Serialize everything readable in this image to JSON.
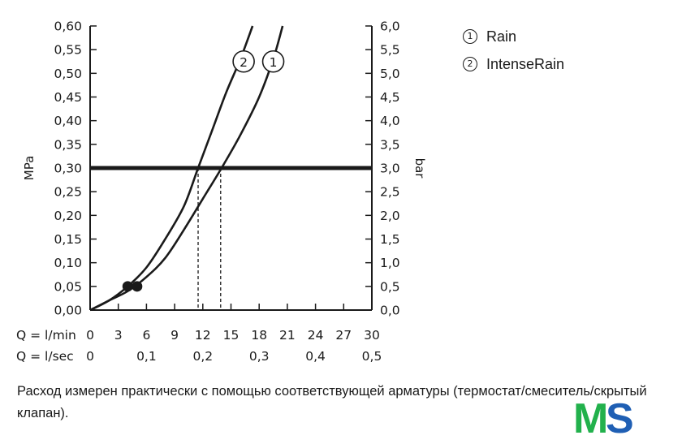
{
  "chart_data": {
    "type": "line",
    "ylabel_left": "MPa",
    "ylabel_right": "bar",
    "ylim": [
      0,
      0.6
    ],
    "xlim": [
      0,
      30
    ],
    "yticks_left": [
      "0,00",
      "0,05",
      "0,10",
      "0,15",
      "0,20",
      "0,25",
      "0,30",
      "0,35",
      "0,40",
      "0,45",
      "0,50",
      "0,55",
      "0,60"
    ],
    "yticks_right": [
      "0,0",
      "0,5",
      "1,0",
      "1,5",
      "2,0",
      "2,5",
      "3,0",
      "3,5",
      "4,0",
      "4,5",
      "5,0",
      "5,5",
      "6,0"
    ],
    "x_row1_label": "Q = l/min",
    "x_row1_ticks": [
      "0",
      "3",
      "6",
      "9",
      "12",
      "15",
      "18",
      "21",
      "24",
      "27",
      "30"
    ],
    "x_row2_label": "Q = l/sec",
    "x_row2_ticks": [
      "0",
      "0,1",
      "0,2",
      "0,3",
      "0,4",
      "0,5"
    ],
    "reference_line": {
      "y": 0.3
    },
    "series": [
      {
        "name": "Rain",
        "marker": "1",
        "points": [
          [
            0,
            0
          ],
          [
            2,
            0.02
          ],
          [
            4,
            0.04
          ],
          [
            6,
            0.07
          ],
          [
            8,
            0.11
          ],
          [
            10,
            0.17
          ],
          [
            12,
            0.235
          ],
          [
            14,
            0.3
          ],
          [
            16,
            0.37
          ],
          [
            18,
            0.45
          ],
          [
            19.5,
            0.53
          ],
          [
            20.5,
            0.6
          ]
        ],
        "operating_point": [
          5.0,
          0.05
        ],
        "flow_at_reference": 13.9
      },
      {
        "name": "IntenseRain",
        "marker": "2",
        "points": [
          [
            0,
            0
          ],
          [
            2,
            0.02
          ],
          [
            4,
            0.05
          ],
          [
            6,
            0.09
          ],
          [
            8,
            0.15
          ],
          [
            10,
            0.22
          ],
          [
            11.5,
            0.3
          ],
          [
            13,
            0.38
          ],
          [
            14.5,
            0.46
          ],
          [
            16,
            0.53
          ],
          [
            17.3,
            0.6
          ]
        ],
        "operating_point": [
          4.0,
          0.05
        ],
        "flow_at_reference": 11.5
      }
    ]
  },
  "legend": [
    {
      "marker": "1",
      "label": "Rain"
    },
    {
      "marker": "2",
      "label": "IntenseRain"
    }
  ],
  "footnote": "Расход измерен практически с помощью соответствующей арматуры (термостат/смеситель/скрытый клапан).",
  "logo": {
    "text_m": "M",
    "text_s": "S",
    "color_m": "#22b14c",
    "color_s": "#1f5fb4"
  }
}
